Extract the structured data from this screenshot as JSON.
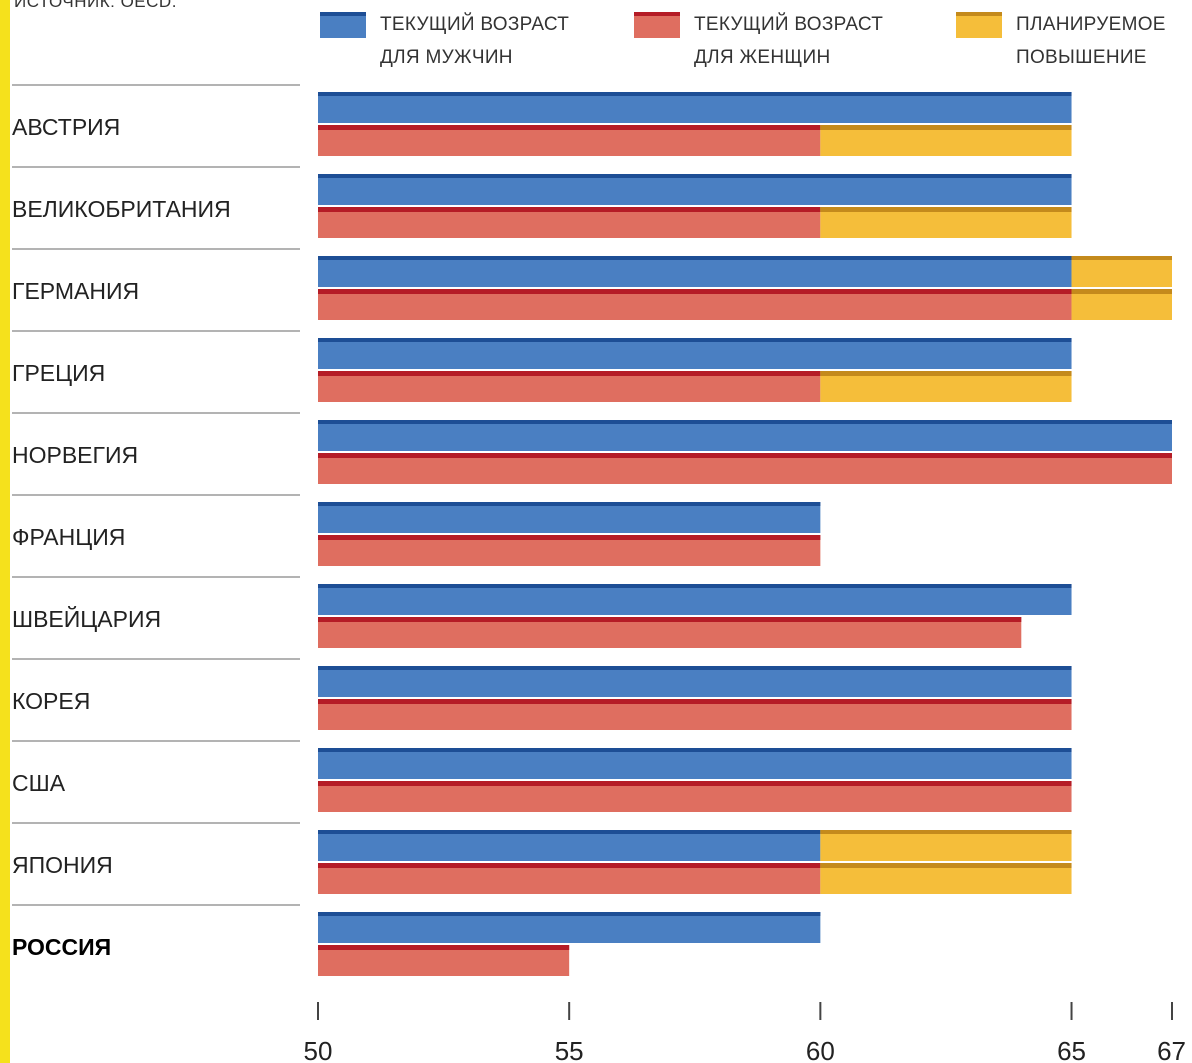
{
  "source_note": "ИСТОЧНИК: OECD.",
  "colors": {
    "men": "#4a7fc2",
    "men_edge": "#1d4e95",
    "women": "#df6e60",
    "women_edge": "#b51c26",
    "planned": "#f5be3a",
    "planned_edge": "#c48a1c",
    "strip": "#f5e11c"
  },
  "chart_data": {
    "type": "bar",
    "orientation": "horizontal",
    "source": "ИСТОЧНИК: OECD.",
    "categories": [
      "АВСТРИЯ",
      "ВЕЛИКОБРИТАНИЯ",
      "ГЕРМАНИЯ",
      "ГРЕЦИЯ",
      "НОРВЕГИЯ",
      "ФРАНЦИЯ",
      "ШВЕЙЦАРИЯ",
      "КОРЕЯ",
      "США",
      "ЯПОНИЯ",
      "РОССИЯ"
    ],
    "highlight": "РОССИЯ",
    "series": [
      {
        "name": "ТЕКУЩИЙ ВОЗРАСТ\nДЛЯ МУЖЧИН",
        "values": [
          65,
          65,
          65,
          65,
          67,
          60,
          65,
          65,
          65,
          60,
          60
        ]
      },
      {
        "name": "ТЕКУЩИЙ ВОЗРАСТ\nДЛЯ ЖЕНЩИН",
        "values": [
          60,
          60,
          65,
          60,
          67,
          60,
          64,
          65,
          65,
          60,
          55
        ]
      },
      {
        "name": "ПЛАНИРУЕМОЕ\nПОВЫШЕНИЕ",
        "values": [
          65,
          65,
          67,
          65,
          null,
          null,
          null,
          null,
          null,
          65,
          null
        ],
        "men_values": [
          null,
          null,
          67,
          null,
          null,
          null,
          null,
          null,
          null,
          65,
          null
        ]
      }
    ],
    "xlim": [
      50,
      67
    ],
    "xticks": [
      50,
      55,
      60,
      65,
      67
    ],
    "legend_position": "top"
  }
}
